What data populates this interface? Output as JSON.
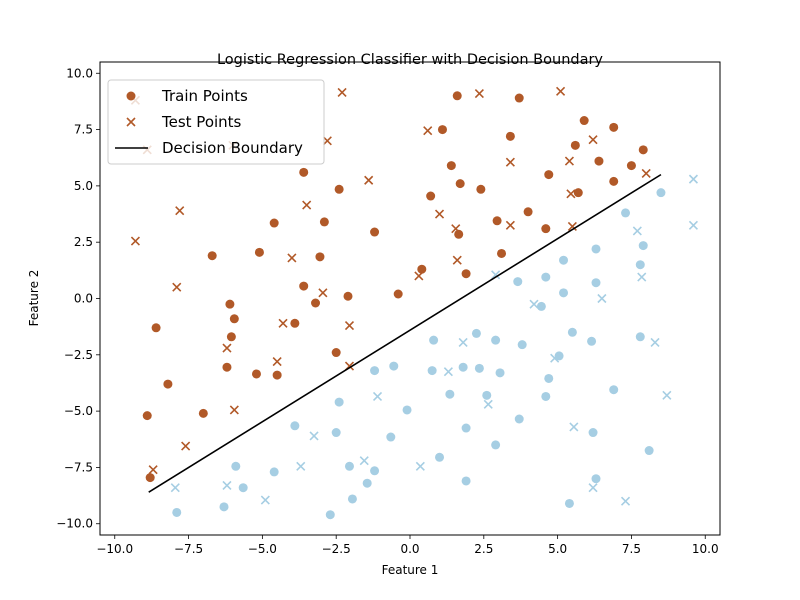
{
  "chart_data": {
    "type": "scatter",
    "title": "Logistic Regression Classifier with Decision Boundary",
    "xlabel": "Feature 1",
    "ylabel": "Feature 2",
    "xlim": [
      -10.5,
      10.5
    ],
    "ylim": [
      -10.5,
      10.5
    ],
    "xticks": [
      -10.0,
      -7.5,
      -5.0,
      -2.5,
      0.0,
      2.5,
      5.0,
      7.5,
      10.0
    ],
    "yticks": [
      -10.0,
      -7.5,
      -5.0,
      -2.5,
      0.0,
      2.5,
      5.0,
      7.5,
      10.0
    ],
    "tick_labels": [
      "−10.0",
      "−7.5",
      "−5.0",
      "−2.5",
      "0.0",
      "2.5",
      "5.0",
      "7.5",
      "10.0"
    ],
    "grid": false,
    "legend_position": "top-left",
    "colors": {
      "class_1": "#b15928",
      "class_0": "#a6cee3",
      "boundary": "#000000"
    },
    "legend": [
      {
        "label": "Train Points",
        "marker": "circle"
      },
      {
        "label": "Test Points",
        "marker": "x"
      },
      {
        "label": "Decision Boundary",
        "marker": "line"
      }
    ],
    "series": [
      {
        "name": "Train Points",
        "marker": "circle",
        "points": [
          {
            "x": 1.6,
            "y": 9.0,
            "class": 1
          },
          {
            "x": 3.7,
            "y": 8.9,
            "class": 1
          },
          {
            "x": 1.1,
            "y": 7.5,
            "class": 1
          },
          {
            "x": 5.9,
            "y": 7.9,
            "class": 1
          },
          {
            "x": 6.9,
            "y": 7.6,
            "class": 1
          },
          {
            "x": 3.4,
            "y": 7.2,
            "class": 1
          },
          {
            "x": 5.6,
            "y": 6.8,
            "class": 1
          },
          {
            "x": 7.9,
            "y": 6.6,
            "class": 1
          },
          {
            "x": 6.4,
            "y": 6.1,
            "class": 1
          },
          {
            "x": 1.4,
            "y": 5.9,
            "class": 1
          },
          {
            "x": 7.5,
            "y": 5.9,
            "class": 1
          },
          {
            "x": -3.6,
            "y": 5.6,
            "class": 1
          },
          {
            "x": 4.7,
            "y": 5.5,
            "class": 1
          },
          {
            "x": 6.9,
            "y": 5.2,
            "class": 1
          },
          {
            "x": 1.7,
            "y": 5.1,
            "class": 1
          },
          {
            "x": -2.4,
            "y": 4.85,
            "class": 1
          },
          {
            "x": 2.4,
            "y": 4.85,
            "class": 1
          },
          {
            "x": 5.7,
            "y": 4.7,
            "class": 1
          },
          {
            "x": 0.7,
            "y": 4.55,
            "class": 1
          },
          {
            "x": 4.0,
            "y": 3.85,
            "class": 1
          },
          {
            "x": -2.9,
            "y": 3.4,
            "class": 1
          },
          {
            "x": 2.95,
            "y": 3.45,
            "class": 1
          },
          {
            "x": -4.6,
            "y": 3.35,
            "class": 1
          },
          {
            "x": -1.2,
            "y": 2.95,
            "class": 1
          },
          {
            "x": 4.6,
            "y": 3.1,
            "class": 1
          },
          {
            "x": 1.65,
            "y": 2.85,
            "class": 1
          },
          {
            "x": -5.1,
            "y": 2.05,
            "class": 1
          },
          {
            "x": -6.7,
            "y": 1.9,
            "class": 1
          },
          {
            "x": -3.05,
            "y": 1.85,
            "class": 1
          },
          {
            "x": 3.1,
            "y": 2.0,
            "class": 1
          },
          {
            "x": 0.4,
            "y": 1.3,
            "class": 1
          },
          {
            "x": 1.9,
            "y": 1.1,
            "class": 1
          },
          {
            "x": -3.6,
            "y": 0.55,
            "class": 1
          },
          {
            "x": -0.4,
            "y": 0.2,
            "class": 1
          },
          {
            "x": -2.1,
            "y": 0.1,
            "class": 1
          },
          {
            "x": -6.1,
            "y": -0.25,
            "class": 1
          },
          {
            "x": -3.2,
            "y": -0.2,
            "class": 1
          },
          {
            "x": -5.95,
            "y": -0.9,
            "class": 1
          },
          {
            "x": -3.9,
            "y": -1.1,
            "class": 1
          },
          {
            "x": -8.6,
            "y": -1.3,
            "class": 1
          },
          {
            "x": -6.05,
            "y": -1.7,
            "class": 1
          },
          {
            "x": -2.5,
            "y": -2.4,
            "class": 1
          },
          {
            "x": -6.2,
            "y": -3.05,
            "class": 1
          },
          {
            "x": -5.2,
            "y": -3.35,
            "class": 1
          },
          {
            "x": -4.5,
            "y": -3.4,
            "class": 1
          },
          {
            "x": -8.2,
            "y": -3.8,
            "class": 1
          },
          {
            "x": -7.0,
            "y": -5.1,
            "class": 1
          },
          {
            "x": -8.9,
            "y": -5.2,
            "class": 1
          },
          {
            "x": -8.8,
            "y": -7.95,
            "class": 1
          },
          {
            "x": 7.3,
            "y": 3.8,
            "class": 0
          },
          {
            "x": 8.5,
            "y": 4.7,
            "class": 0
          },
          {
            "x": 7.9,
            "y": 2.35,
            "class": 0
          },
          {
            "x": 6.3,
            "y": 2.2,
            "class": 0
          },
          {
            "x": 5.2,
            "y": 1.7,
            "class": 0
          },
          {
            "x": 7.8,
            "y": 1.5,
            "class": 0
          },
          {
            "x": 4.6,
            "y": 0.95,
            "class": 0
          },
          {
            "x": 3.65,
            "y": 0.75,
            "class": 0
          },
          {
            "x": 6.3,
            "y": 0.7,
            "class": 0
          },
          {
            "x": 5.2,
            "y": 0.25,
            "class": 0
          },
          {
            "x": 4.45,
            "y": -0.35,
            "class": 0
          },
          {
            "x": 5.5,
            "y": -1.5,
            "class": 0
          },
          {
            "x": 2.25,
            "y": -1.55,
            "class": 0
          },
          {
            "x": 7.8,
            "y": -1.7,
            "class": 0
          },
          {
            "x": 0.8,
            "y": -1.85,
            "class": 0
          },
          {
            "x": 2.9,
            "y": -1.85,
            "class": 0
          },
          {
            "x": 6.15,
            "y": -1.9,
            "class": 0
          },
          {
            "x": 3.8,
            "y": -2.05,
            "class": 0
          },
          {
            "x": 5.05,
            "y": -2.55,
            "class": 0
          },
          {
            "x": -0.55,
            "y": -3.0,
            "class": 0
          },
          {
            "x": 1.8,
            "y": -3.05,
            "class": 0
          },
          {
            "x": 2.35,
            "y": -3.1,
            "class": 0
          },
          {
            "x": -1.2,
            "y": -3.2,
            "class": 0
          },
          {
            "x": 0.75,
            "y": -3.2,
            "class": 0
          },
          {
            "x": 3.05,
            "y": -3.3,
            "class": 0
          },
          {
            "x": 4.7,
            "y": -3.55,
            "class": 0
          },
          {
            "x": 6.9,
            "y": -4.05,
            "class": 0
          },
          {
            "x": 1.35,
            "y": -4.25,
            "class": 0
          },
          {
            "x": 2.6,
            "y": -4.3,
            "class": 0
          },
          {
            "x": 4.6,
            "y": -4.35,
            "class": 0
          },
          {
            "x": -2.4,
            "y": -4.6,
            "class": 0
          },
          {
            "x": -0.1,
            "y": -4.95,
            "class": 0
          },
          {
            "x": 3.7,
            "y": -5.35,
            "class": 0
          },
          {
            "x": -3.9,
            "y": -5.65,
            "class": 0
          },
          {
            "x": 1.9,
            "y": -5.75,
            "class": 0
          },
          {
            "x": -2.5,
            "y": -5.95,
            "class": 0
          },
          {
            "x": 6.2,
            "y": -5.95,
            "class": 0
          },
          {
            "x": -0.65,
            "y": -6.15,
            "class": 0
          },
          {
            "x": 2.9,
            "y": -6.5,
            "class": 0
          },
          {
            "x": 8.1,
            "y": -6.75,
            "class": 0
          },
          {
            "x": 1.0,
            "y": -7.05,
            "class": 0
          },
          {
            "x": -5.9,
            "y": -7.45,
            "class": 0
          },
          {
            "x": -2.05,
            "y": -7.45,
            "class": 0
          },
          {
            "x": -1.2,
            "y": -7.65,
            "class": 0
          },
          {
            "x": -4.6,
            "y": -7.7,
            "class": 0
          },
          {
            "x": 6.3,
            "y": -8.0,
            "class": 0
          },
          {
            "x": 1.9,
            "y": -8.1,
            "class": 0
          },
          {
            "x": -1.45,
            "y": -8.2,
            "class": 0
          },
          {
            "x": -5.65,
            "y": -8.4,
            "class": 0
          },
          {
            "x": -1.95,
            "y": -8.9,
            "class": 0
          },
          {
            "x": 5.4,
            "y": -9.1,
            "class": 0
          },
          {
            "x": -6.3,
            "y": -9.25,
            "class": 0
          },
          {
            "x": -7.9,
            "y": -9.5,
            "class": 0
          },
          {
            "x": -2.7,
            "y": -9.6,
            "class": 0
          }
        ]
      },
      {
        "name": "Test Points",
        "marker": "x",
        "points": [
          {
            "x": -9.3,
            "y": 8.8,
            "class": 1
          },
          {
            "x": -2.3,
            "y": 9.15,
            "class": 1
          },
          {
            "x": 2.35,
            "y": 9.1,
            "class": 1
          },
          {
            "x": 5.1,
            "y": 9.2,
            "class": 1
          },
          {
            "x": 0.6,
            "y": 7.45,
            "class": 1
          },
          {
            "x": -2.8,
            "y": 7.0,
            "class": 1
          },
          {
            "x": 6.2,
            "y": 7.05,
            "class": 1
          },
          {
            "x": -8.9,
            "y": 6.6,
            "class": 1
          },
          {
            "x": -6.0,
            "y": 6.8,
            "class": 1
          },
          {
            "x": 3.4,
            "y": 6.05,
            "class": 1
          },
          {
            "x": 5.4,
            "y": 6.1,
            "class": 1
          },
          {
            "x": 8.0,
            "y": 5.55,
            "class": 1
          },
          {
            "x": -1.4,
            "y": 5.25,
            "class": 1
          },
          {
            "x": 5.45,
            "y": 4.65,
            "class": 1
          },
          {
            "x": -3.5,
            "y": 4.15,
            "class": 1
          },
          {
            "x": -7.8,
            "y": 3.9,
            "class": 1
          },
          {
            "x": 1.0,
            "y": 3.75,
            "class": 1
          },
          {
            "x": 3.4,
            "y": 3.25,
            "class": 1
          },
          {
            "x": 5.5,
            "y": 3.2,
            "class": 1
          },
          {
            "x": 1.55,
            "y": 3.1,
            "class": 1
          },
          {
            "x": -9.3,
            "y": 2.55,
            "class": 1
          },
          {
            "x": -4.0,
            "y": 1.8,
            "class": 1
          },
          {
            "x": 1.6,
            "y": 1.7,
            "class": 1
          },
          {
            "x": 0.3,
            "y": 1.0,
            "class": 1
          },
          {
            "x": -7.9,
            "y": 0.5,
            "class": 1
          },
          {
            "x": -2.95,
            "y": 0.25,
            "class": 1
          },
          {
            "x": -4.3,
            "y": -1.1,
            "class": 1
          },
          {
            "x": -2.05,
            "y": -1.2,
            "class": 1
          },
          {
            "x": -6.2,
            "y": -2.2,
            "class": 1
          },
          {
            "x": -4.5,
            "y": -2.8,
            "class": 1
          },
          {
            "x": -2.05,
            "y": -3.0,
            "class": 1
          },
          {
            "x": -5.95,
            "y": -4.95,
            "class": 1
          },
          {
            "x": -7.6,
            "y": -6.55,
            "class": 1
          },
          {
            "x": -8.7,
            "y": -7.6,
            "class": 1
          },
          {
            "x": 9.6,
            "y": 5.3,
            "class": 0
          },
          {
            "x": 9.6,
            "y": 3.25,
            "class": 0
          },
          {
            "x": 7.7,
            "y": 3.0,
            "class": 0
          },
          {
            "x": 2.9,
            "y": 1.05,
            "class": 0
          },
          {
            "x": 7.85,
            "y": 0.95,
            "class": 0
          },
          {
            "x": 6.5,
            "y": 0.0,
            "class": 0
          },
          {
            "x": 4.2,
            "y": -0.25,
            "class": 0
          },
          {
            "x": 8.3,
            "y": -1.95,
            "class": 0
          },
          {
            "x": 1.8,
            "y": -1.95,
            "class": 0
          },
          {
            "x": 4.9,
            "y": -2.65,
            "class": 0
          },
          {
            "x": 1.3,
            "y": -3.25,
            "class": 0
          },
          {
            "x": 8.7,
            "y": -4.3,
            "class": 0
          },
          {
            "x": -1.1,
            "y": -4.35,
            "class": 0
          },
          {
            "x": 2.65,
            "y": -4.7,
            "class": 0
          },
          {
            "x": 5.55,
            "y": -5.7,
            "class": 0
          },
          {
            "x": -3.25,
            "y": -6.1,
            "class": 0
          },
          {
            "x": -1.55,
            "y": -7.2,
            "class": 0
          },
          {
            "x": -3.7,
            "y": -7.45,
            "class": 0
          },
          {
            "x": 0.35,
            "y": -7.45,
            "class": 0
          },
          {
            "x": -6.2,
            "y": -8.3,
            "class": 0
          },
          {
            "x": -7.95,
            "y": -8.4,
            "class": 0
          },
          {
            "x": 6.2,
            "y": -8.4,
            "class": 0
          },
          {
            "x": -4.9,
            "y": -8.95,
            "class": 0
          },
          {
            "x": 7.3,
            "y": -9.0,
            "class": 0
          }
        ]
      },
      {
        "name": "Decision Boundary",
        "marker": "line",
        "points": [
          {
            "x": -8.85,
            "y": -8.6
          },
          {
            "x": 8.5,
            "y": 5.5
          }
        ]
      }
    ]
  }
}
